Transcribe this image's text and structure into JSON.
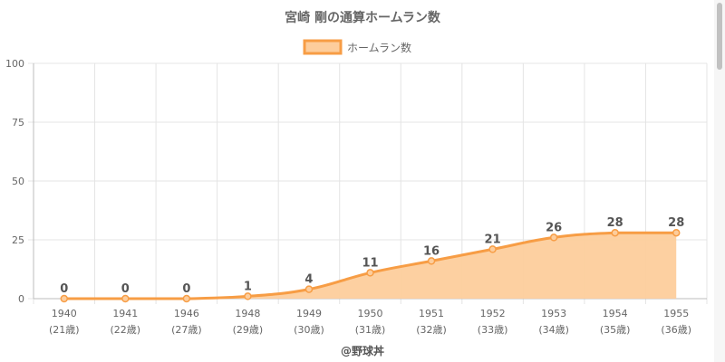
{
  "chart_data": {
    "type": "area",
    "title": "宮崎 剛の通算ホームラン数",
    "legend": {
      "label": "ホームラン数",
      "position": "top"
    },
    "categories": [
      "1940",
      "1941",
      "1946",
      "1948",
      "1949",
      "1950",
      "1951",
      "1952",
      "1953",
      "1954",
      "1955"
    ],
    "sublabels": [
      "(21歳)",
      "(22歳)",
      "(27歳)",
      "(29歳)",
      "(30歳)",
      "(31歳)",
      "(32歳)",
      "(33歳)",
      "(34歳)",
      "(35歳)",
      "(36歳)"
    ],
    "series": [
      {
        "name": "ホームラン数",
        "values": [
          0,
          0,
          0,
          1,
          4,
          11,
          16,
          21,
          26,
          28,
          28
        ]
      }
    ],
    "ylim": [
      0,
      100
    ],
    "yticks": [
      0,
      25,
      50,
      75,
      100
    ],
    "grid": true,
    "colors": {
      "line": "#f79d45",
      "fill": "#fdcd9c",
      "grid": "#e4e4e4",
      "text": "#666666",
      "label": "#555555"
    }
  },
  "footer": {
    "credit": "@野球丼"
  }
}
